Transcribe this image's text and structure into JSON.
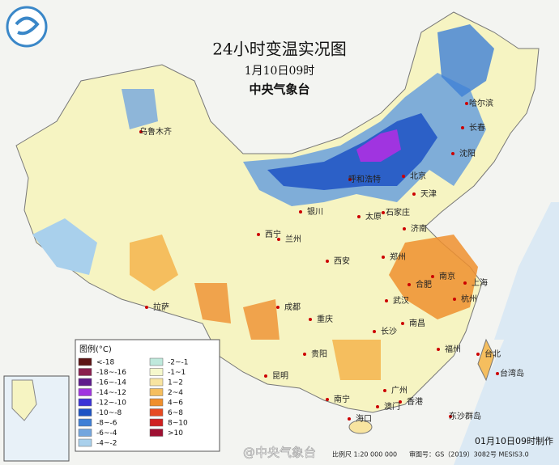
{
  "header": {
    "title": "24小时变温实况图",
    "time": "1月10日09时",
    "agency": "中央气象台"
  },
  "legend": {
    "title": "图例(°C)",
    "items": [
      {
        "label": "<-18",
        "color": "#5c1414"
      },
      {
        "label": "-18~-16",
        "color": "#8a1f4e"
      },
      {
        "label": "-16~-14",
        "color": "#5e1a8c"
      },
      {
        "label": "-14~-12",
        "color": "#a034e0"
      },
      {
        "label": "-12~-10",
        "color": "#3b32d6"
      },
      {
        "label": "-10~-8",
        "color": "#1d52c4"
      },
      {
        "label": "-8~-6",
        "color": "#3f7fd6"
      },
      {
        "label": "-6~-4",
        "color": "#74a6de"
      },
      {
        "label": "-4~-2",
        "color": "#a9d0ec"
      },
      {
        "label": "-2~-1",
        "color": "#bfe9dc"
      },
      {
        "label": "-1~1",
        "color": "#f5f8cc"
      },
      {
        "label": "1~2",
        "color": "#f8e4a0"
      },
      {
        "label": "2~4",
        "color": "#f5be5e"
      },
      {
        "label": "4~6",
        "color": "#ef8f2e"
      },
      {
        "label": "6~8",
        "color": "#e64a22"
      },
      {
        "label": "8~10",
        "color": "#cf2020"
      },
      {
        "label": ">10",
        "color": "#9e1032"
      }
    ]
  },
  "cities": [
    "乌鲁木齐",
    "哈尔滨",
    "长春",
    "沈阳",
    "呼和浩特",
    "北京",
    "天津",
    "石家庄",
    "太原",
    "银川",
    "西宁",
    "兰州",
    "济南",
    "郑州",
    "西安",
    "合肥",
    "南京",
    "上海",
    "杭州",
    "武汉",
    "成都",
    "重庆",
    "拉萨",
    "长沙",
    "南昌",
    "福州",
    "贵阳",
    "昆明",
    "南宁",
    "广州",
    "香港",
    "澳门",
    "台北",
    "海口",
    "台湾岛",
    "东沙群岛"
  ],
  "footer": {
    "scale": "比例尺 1:20 000 000",
    "approval": "审图号：GS（2019）3082号 MESIS3.0",
    "made": "01月10日09时制作",
    "watermark": "@中央气象台"
  }
}
